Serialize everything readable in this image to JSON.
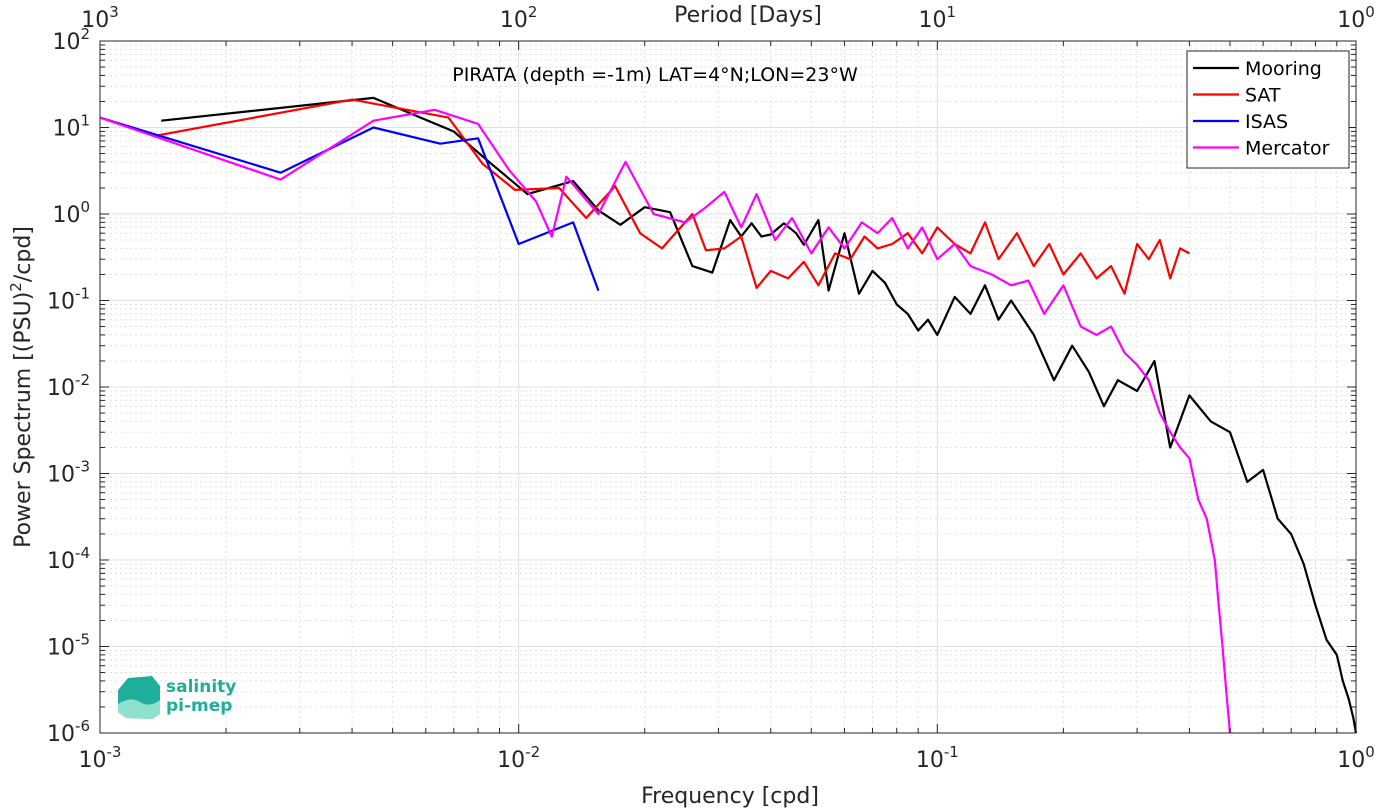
{
  "chart_data": {
    "type": "line",
    "title": "PIRATA (depth =-1m) LAT=4°N;LON=23°W",
    "xlabel": "Frequency [cpd]",
    "ylabel": "Power Spectrum [(PSU)",
    "ylabel_sup": "2",
    "ylabel_end": "/cpd]",
    "top_xlabel": "Period [Days]",
    "xscale": "log",
    "yscale": "log",
    "xlim": [
      0.001,
      1
    ],
    "ylim": [
      1e-06,
      100
    ],
    "grid": true,
    "legend_position": "top-right",
    "x_ticks": [
      {
        "base": "10",
        "exp": "-3"
      },
      {
        "base": "10",
        "exp": "-2"
      },
      {
        "base": "10",
        "exp": "-1"
      },
      {
        "base": "10",
        "exp": "0"
      }
    ],
    "y_ticks": [
      {
        "base": "10",
        "exp": "-6"
      },
      {
        "base": "10",
        "exp": "-5"
      },
      {
        "base": "10",
        "exp": "-4"
      },
      {
        "base": "10",
        "exp": "-3"
      },
      {
        "base": "10",
        "exp": "-2"
      },
      {
        "base": "10",
        "exp": "-1"
      },
      {
        "base": "10",
        "exp": "0"
      },
      {
        "base": "10",
        "exp": "1"
      },
      {
        "base": "10",
        "exp": "2"
      }
    ],
    "top_ticks": [
      {
        "base": "10",
        "exp": "3"
      },
      {
        "base": "10",
        "exp": "2"
      },
      {
        "base": "10",
        "exp": "1"
      },
      {
        "base": "10",
        "exp": "0"
      }
    ],
    "series": [
      {
        "name": "Mooring",
        "color": "#000000",
        "x": [
          0.0014,
          0.0045,
          0.007,
          0.0085,
          0.0105,
          0.0135,
          0.0155,
          0.0175,
          0.02,
          0.023,
          0.026,
          0.029,
          0.032,
          0.034,
          0.036,
          0.038,
          0.04,
          0.043,
          0.046,
          0.048,
          0.052,
          0.055,
          0.06,
          0.065,
          0.07,
          0.075,
          0.08,
          0.085,
          0.09,
          0.095,
          0.1,
          0.11,
          0.12,
          0.13,
          0.14,
          0.15,
          0.17,
          0.19,
          0.21,
          0.23,
          0.25,
          0.27,
          0.3,
          0.33,
          0.36,
          0.4,
          0.45,
          0.5,
          0.55,
          0.6,
          0.65,
          0.7,
          0.75,
          0.8,
          0.85,
          0.9,
          0.93,
          0.96,
          0.985,
          1.0
        ],
        "y": [
          12,
          22,
          9,
          4,
          1.7,
          2.4,
          1.1,
          0.75,
          1.2,
          1.05,
          0.25,
          0.21,
          0.85,
          0.55,
          0.78,
          0.55,
          0.58,
          0.78,
          0.6,
          0.44,
          0.85,
          0.13,
          0.6,
          0.12,
          0.22,
          0.16,
          0.09,
          0.07,
          0.045,
          0.06,
          0.04,
          0.11,
          0.07,
          0.15,
          0.06,
          0.1,
          0.04,
          0.012,
          0.03,
          0.015,
          0.006,
          0.012,
          0.009,
          0.02,
          0.002,
          0.008,
          0.004,
          0.003,
          0.0008,
          0.0011,
          0.0003,
          0.0002,
          9e-05,
          3e-05,
          1.2e-05,
          8e-06,
          4e-06,
          2.5e-06,
          1.5e-06,
          1e-06
        ]
      },
      {
        "name": "SAT",
        "color": "#ff0000",
        "x": [
          0.00135,
          0.004,
          0.0068,
          0.0082,
          0.0098,
          0.0125,
          0.0145,
          0.017,
          0.0195,
          0.022,
          0.026,
          0.028,
          0.031,
          0.034,
          0.037,
          0.04,
          0.044,
          0.048,
          0.052,
          0.057,
          0.062,
          0.067,
          0.072,
          0.078,
          0.085,
          0.092,
          0.1,
          0.11,
          0.12,
          0.13,
          0.14,
          0.155,
          0.17,
          0.185,
          0.2,
          0.22,
          0.24,
          0.26,
          0.28,
          0.3,
          0.32,
          0.34,
          0.36,
          0.38,
          0.4
        ],
        "y": [
          8,
          21,
          13,
          3.8,
          1.9,
          2.0,
          0.9,
          2.1,
          0.6,
          0.4,
          1.0,
          0.38,
          0.4,
          0.55,
          0.14,
          0.22,
          0.18,
          0.28,
          0.15,
          0.35,
          0.3,
          0.55,
          0.4,
          0.45,
          0.6,
          0.35,
          0.7,
          0.45,
          0.35,
          0.8,
          0.3,
          0.6,
          0.25,
          0.45,
          0.2,
          0.35,
          0.18,
          0.25,
          0.12,
          0.45,
          0.3,
          0.5,
          0.18,
          0.4,
          0.35
        ]
      },
      {
        "name": "ISAS",
        "color": "#0000ff",
        "x": [
          0.001,
          0.0027,
          0.0045,
          0.0065,
          0.008,
          0.01,
          0.0135,
          0.0155
        ],
        "y": [
          13,
          3,
          10,
          6.5,
          7.5,
          0.45,
          0.8,
          0.13
        ]
      },
      {
        "name": "Mercator",
        "color": "#ff00ff",
        "x": [
          0.001,
          0.0027,
          0.0045,
          0.0063,
          0.008,
          0.0095,
          0.011,
          0.012,
          0.013,
          0.0155,
          0.018,
          0.021,
          0.025,
          0.028,
          0.031,
          0.034,
          0.037,
          0.041,
          0.045,
          0.05,
          0.055,
          0.06,
          0.066,
          0.072,
          0.078,
          0.085,
          0.092,
          0.1,
          0.11,
          0.12,
          0.135,
          0.15,
          0.165,
          0.18,
          0.2,
          0.22,
          0.24,
          0.26,
          0.28,
          0.3,
          0.32,
          0.34,
          0.36,
          0.38,
          0.4,
          0.42,
          0.44,
          0.46,
          0.47,
          0.48,
          0.49,
          0.5
        ],
        "y": [
          13,
          2.5,
          12,
          16,
          11,
          3.2,
          1.4,
          0.55,
          2.7,
          1.0,
          4.0,
          1.0,
          0.8,
          1.2,
          1.8,
          0.7,
          1.7,
          0.5,
          0.9,
          0.35,
          0.7,
          0.4,
          0.8,
          0.6,
          0.9,
          0.4,
          0.7,
          0.3,
          0.45,
          0.25,
          0.2,
          0.15,
          0.17,
          0.07,
          0.15,
          0.05,
          0.04,
          0.05,
          0.025,
          0.018,
          0.012,
          0.005,
          0.003,
          0.002,
          0.0015,
          0.0005,
          0.0003,
          0.0001,
          3e-05,
          1e-05,
          3e-06,
          1e-06
        ]
      }
    ]
  },
  "logo": {
    "line1": "salinity",
    "line2": "pi-mep"
  },
  "colors": {
    "axis": "#262626",
    "grid": "#e0e0e0",
    "logo_green": "#1fae9a"
  }
}
